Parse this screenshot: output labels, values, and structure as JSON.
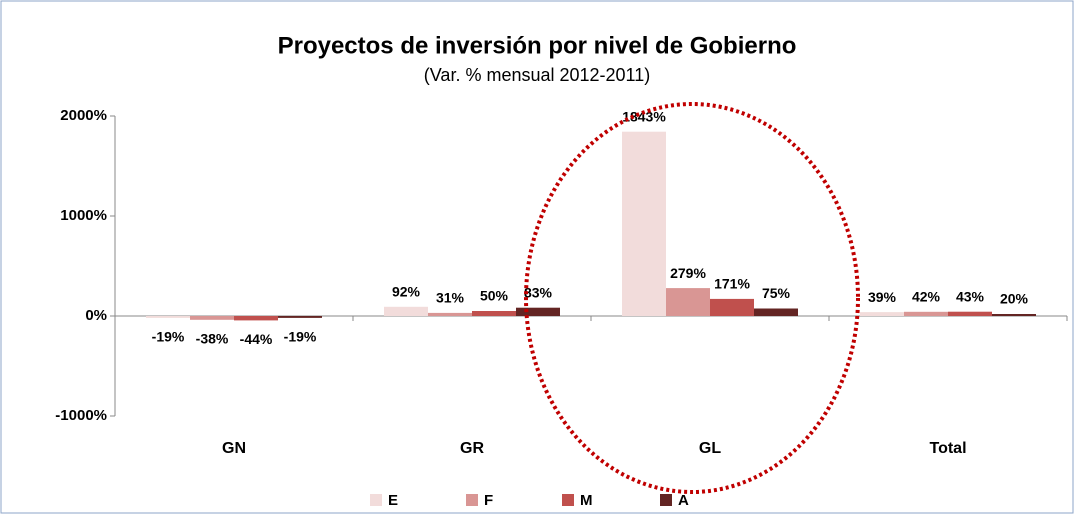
{
  "chart_data": {
    "type": "bar",
    "title": "Proyectos de inversión por nivel de Gobierno",
    "subtitle": "(Var. %  mensual 2012-2011)",
    "categories": [
      "GN",
      "GR",
      "GL",
      "Total"
    ],
    "series": [
      {
        "name": "E",
        "color": "#f2dcdb",
        "values": [
          -19,
          92,
          1843,
          39
        ],
        "value_labels": [
          "-19%",
          "92%",
          "1843%",
          "39%"
        ]
      },
      {
        "name": "F",
        "color": "#d99694",
        "values": [
          -38,
          31,
          279,
          42
        ],
        "value_labels": [
          "-38%",
          "31%",
          "279%",
          "42%"
        ]
      },
      {
        "name": "M",
        "color": "#c0504d",
        "values": [
          -44,
          50,
          171,
          43
        ],
        "value_labels": [
          "-44%",
          "50%",
          "171%",
          "43%"
        ]
      },
      {
        "name": "A",
        "color": "#632523",
        "values": [
          -19,
          83,
          75,
          20
        ],
        "value_labels": [
          "-19%",
          "83%",
          "75%",
          "20%"
        ]
      }
    ],
    "ylim": [
      -1000,
      2000
    ],
    "yticks": [
      {
        "value": -1000,
        "label": "-1000%"
      },
      {
        "value": 0,
        "label": "0%"
      },
      {
        "value": 1000,
        "label": "1000%"
      },
      {
        "value": 2000,
        "label": "2000%"
      }
    ],
    "legend": "bottom"
  }
}
